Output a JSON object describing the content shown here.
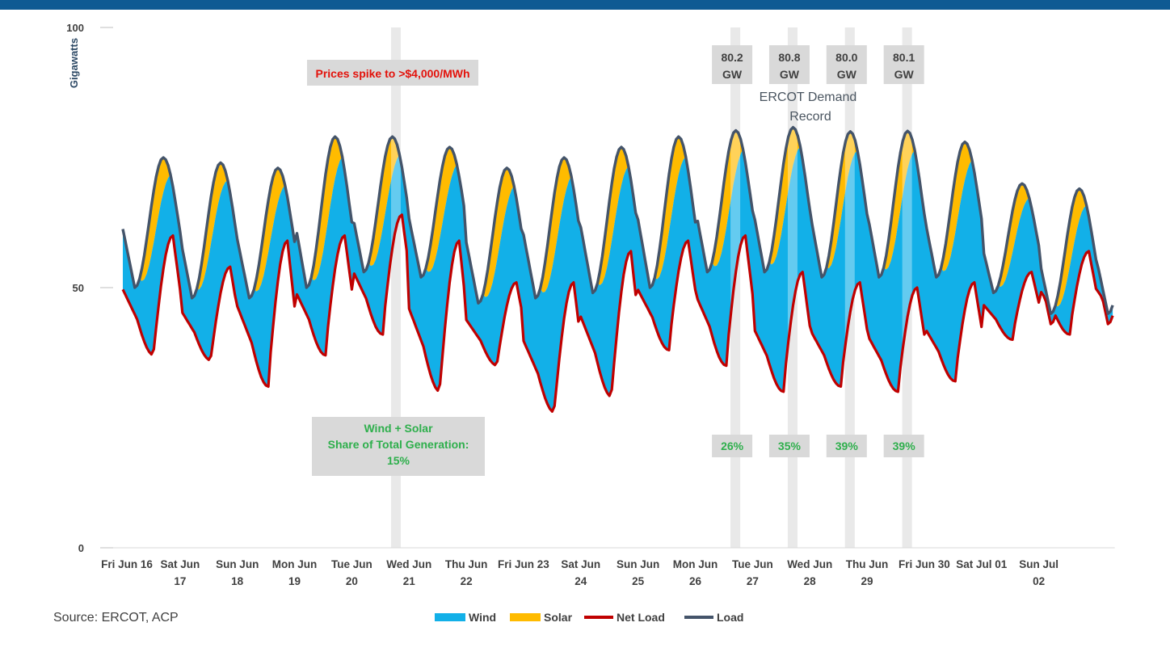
{
  "source": "Source: ERCOT, ACP",
  "colors": {
    "wind": "#12b0e8",
    "solar": "#ffbb00",
    "net_load": "#c00000",
    "load": "#44546a",
    "band": "#d9d9d9",
    "topbar": "#0f5a93"
  },
  "annotations": {
    "price_spike": "Prices spike to >$4,000/MWh",
    "share_lines": [
      "Wind + Solar",
      "Share of Total Generation:",
      "15%"
    ],
    "demand_record_lines": [
      "ERCOT Demand",
      "Record"
    ],
    "peaks": [
      {
        "line1": "80.2",
        "line2": "GW",
        "pct": "26%"
      },
      {
        "line1": "80.8",
        "line2": "GW",
        "pct": "35%"
      },
      {
        "line1": "80.0",
        "line2": "GW",
        "pct": "39%"
      },
      {
        "line1": "80.1",
        "line2": "GW",
        "pct": "39%"
      }
    ]
  },
  "chart_data": {
    "type": "area",
    "title": "",
    "xlabel": "",
    "ylabel": "Gigawatts",
    "ylim": [
      0,
      100
    ],
    "yticks": [
      0,
      50,
      100
    ],
    "grid": false,
    "legend_position": "bottom",
    "x_unit": "day",
    "x_start": "Fri Jun 16",
    "x_range": [
      0,
      17.3
    ],
    "categories": [
      [
        "Fri Jun 16"
      ],
      [
        "Sat Jun",
        "17"
      ],
      [
        "Sun Jun",
        "18"
      ],
      [
        "Mon Jun",
        "19"
      ],
      [
        "Tue Jun",
        "20"
      ],
      [
        "Wed Jun",
        "21"
      ],
      [
        "Thu Jun",
        "22"
      ],
      [
        "Fri Jun 23"
      ],
      [
        "Sat Jun",
        "24"
      ],
      [
        "Sun Jun",
        "25"
      ],
      [
        "Mon Jun",
        "26"
      ],
      [
        "Tue Jun",
        "27"
      ],
      [
        "Wed Jun",
        "28"
      ],
      [
        "Thu Jun",
        "29"
      ],
      [
        "Fri Jun 30"
      ],
      [
        "Sat Jul 01"
      ],
      [
        "Sun Jul",
        "02"
      ]
    ],
    "daily": {
      "day": [
        "Jun 16",
        "Jun 17",
        "Jun 18",
        "Jun 19",
        "Jun 20",
        "Jun 21",
        "Jun 22",
        "Jun 23",
        "Jun 24",
        "Jun 25",
        "Jun 26",
        "Jun 27",
        "Jun 28",
        "Jun 29",
        "Jun 30",
        "Jul 01",
        "Jul 02"
      ],
      "load_peak": [
        75,
        74,
        73,
        79,
        79,
        77,
        73,
        75,
        77,
        79,
        80.2,
        80.8,
        80.0,
        80.1,
        78,
        70,
        69
      ],
      "load_min": [
        50,
        48,
        48,
        50,
        53,
        52,
        47,
        48,
        49,
        50,
        53,
        53,
        52,
        52,
        52,
        49,
        45
      ],
      "net_load_peak": [
        60,
        54,
        59,
        60,
        64,
        59,
        51,
        51,
        57,
        59,
        60,
        53,
        51,
        50,
        51,
        53,
        57
      ],
      "net_load_min": [
        37,
        36,
        31,
        37,
        41,
        30,
        35,
        26,
        29,
        38,
        35,
        30,
        31,
        30,
        32,
        40,
        41
      ],
      "solar_peak": [
        10,
        9,
        10,
        12,
        11,
        11,
        11,
        12,
        11,
        11,
        12,
        11,
        10,
        11,
        11,
        8,
        9
      ]
    },
    "series": [
      {
        "name": "Wind",
        "color": "#12b0e8",
        "kind": "area"
      },
      {
        "name": "Solar",
        "color": "#ffbb00",
        "kind": "area"
      },
      {
        "name": "Net Load",
        "color": "#c00000",
        "kind": "line"
      },
      {
        "name": "Load",
        "color": "#44546a",
        "kind": "line"
      }
    ],
    "highlight_days": [
      4.77,
      10.7,
      11.7,
      12.7,
      13.7
    ]
  }
}
